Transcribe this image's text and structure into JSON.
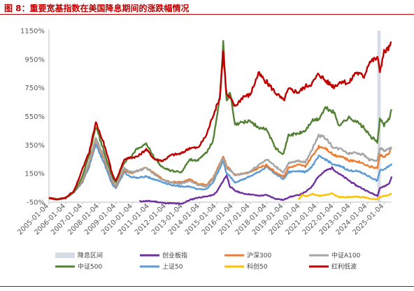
{
  "title": "图 8：重要宽基指数在美国降息期间的涨跌幅情况",
  "chart_data": {
    "type": "line",
    "title": "图 8：重要宽基指数在美国降息期间的涨跌幅情况",
    "ylim": [
      -50,
      1150
    ],
    "yticks": [
      "1150%",
      "950%",
      "750%",
      "550%",
      "350%",
      "150%",
      "-50%"
    ],
    "y_tick_values": [
      1150,
      950,
      750,
      550,
      350,
      150,
      -50
    ],
    "x_tick_labels": [
      "2005-01-04",
      "2006-01-04",
      "2007-01-04",
      "2008-01-04",
      "2009-01-04",
      "2010-01-04",
      "2011-01-04",
      "2012-01-04",
      "2013-01-04",
      "2014-01-04",
      "2015-01-04",
      "2016-01-04",
      "2017-01-04",
      "2018-01-04",
      "2019-01-04",
      "2020-01-04",
      "2021-01-04",
      "2022-01-04",
      "2023-01-04",
      "2024-01-04",
      "2025-01-04"
    ],
    "xlim": [
      2005.0,
      2025.45
    ],
    "grid": false,
    "legend_position": "bottom",
    "shaded_region": {
      "name": "降息区间",
      "x": [
        2024.6,
        2024.8
      ],
      "color": "#D6DCE5"
    },
    "series": [
      {
        "name": "创业板指",
        "color": "#7030A0",
        "x": [
          2010.4,
          2010.8,
          2011.3,
          2011.8,
          2012.3,
          2012.9,
          2013.4,
          2013.8,
          2014.4,
          2014.8,
          2015.0,
          2015.4,
          2015.6,
          2015.8,
          2016.1,
          2016.6,
          2017.0,
          2017.5,
          2018.0,
          2018.5,
          2019.0,
          2019.3,
          2019.9,
          2020.3,
          2020.7,
          2021.0,
          2021.5,
          2021.9,
          2022.3,
          2022.8,
          2023.3,
          2023.8,
          2024.1,
          2024.6,
          2024.75,
          2025.0,
          2025.3,
          2025.45
        ],
        "y": [
          -45,
          -42,
          -45,
          -55,
          -58,
          -62,
          -35,
          -20,
          -10,
          0,
          20,
          100,
          140,
          60,
          30,
          10,
          5,
          -5,
          0,
          -25,
          -35,
          -15,
          0,
          20,
          60,
          120,
          170,
          190,
          150,
          110,
          70,
          40,
          20,
          -5,
          50,
          60,
          80,
          130
        ]
      },
      {
        "name": "沪深300",
        "color": "#ED7D31",
        "x": [
          2005.0,
          2005.5,
          2006.0,
          2006.5,
          2007.0,
          2007.4,
          2007.8,
          2008.3,
          2008.8,
          2009.0,
          2009.5,
          2009.8,
          2010.3,
          2010.8,
          2011.3,
          2011.8,
          2012.3,
          2012.9,
          2013.4,
          2013.9,
          2014.4,
          2014.8,
          2015.2,
          2015.4,
          2015.6,
          2015.8,
          2016.1,
          2016.6,
          2017.0,
          2017.5,
          2018.0,
          2018.5,
          2019.0,
          2019.3,
          2019.9,
          2020.3,
          2020.7,
          2021.1,
          2021.5,
          2022.0,
          2022.5,
          2022.9,
          2023.3,
          2023.8,
          2024.1,
          2024.6,
          2024.75,
          2025.0,
          2025.3,
          2025.45
        ],
        "y": [
          -20,
          -30,
          -20,
          20,
          100,
          220,
          390,
          250,
          90,
          60,
          180,
          150,
          170,
          190,
          150,
          110,
          90,
          90,
          110,
          80,
          70,
          120,
          220,
          270,
          200,
          180,
          140,
          150,
          160,
          190,
          210,
          160,
          130,
          190,
          210,
          200,
          270,
          340,
          330,
          280,
          270,
          240,
          240,
          220,
          200,
          190,
          280,
          270,
          290,
          330
        ]
      },
      {
        "name": "中证A100",
        "color": "#A5A5A5",
        "x": [
          2005.0,
          2005.5,
          2006.0,
          2006.5,
          2007.0,
          2007.4,
          2007.8,
          2008.3,
          2008.8,
          2009.0,
          2009.5,
          2009.8,
          2010.3,
          2010.8,
          2011.3,
          2011.8,
          2012.3,
          2012.9,
          2013.4,
          2013.9,
          2014.4,
          2014.8,
          2015.2,
          2015.4,
          2015.6,
          2015.8,
          2016.1,
          2016.6,
          2017.0,
          2017.5,
          2018.0,
          2018.5,
          2019.0,
          2019.3,
          2019.9,
          2020.3,
          2020.7,
          2021.1,
          2021.5,
          2022.0,
          2022.5,
          2022.9,
          2023.3,
          2023.8,
          2024.1,
          2024.6,
          2024.75,
          2025.0,
          2025.3,
          2025.45
        ],
        "y": [
          -20,
          -30,
          -20,
          20,
          110,
          230,
          400,
          260,
          100,
          70,
          190,
          160,
          170,
          190,
          145,
          105,
          85,
          80,
          100,
          70,
          60,
          110,
          210,
          260,
          190,
          175,
          140,
          150,
          165,
          210,
          250,
          200,
          160,
          220,
          240,
          230,
          320,
          420,
          400,
          330,
          320,
          290,
          300,
          280,
          250,
          240,
          330,
          310,
          320,
          330
        ]
      },
      {
        "name": "中证500",
        "color": "#548235",
        "x": [
          2005.0,
          2005.5,
          2006.0,
          2006.5,
          2007.0,
          2007.4,
          2007.8,
          2008.3,
          2008.8,
          2009.0,
          2009.5,
          2009.8,
          2010.3,
          2010.8,
          2011.3,
          2011.8,
          2012.3,
          2012.9,
          2013.4,
          2013.9,
          2014.4,
          2014.8,
          2015.2,
          2015.4,
          2015.6,
          2015.8,
          2016.1,
          2016.6,
          2017.0,
          2017.5,
          2018.0,
          2018.5,
          2019.0,
          2019.3,
          2019.9,
          2020.3,
          2020.7,
          2021.1,
          2021.5,
          2022.0,
          2022.3,
          2022.9,
          2023.3,
          2023.8,
          2024.1,
          2024.6,
          2024.75,
          2025.0,
          2025.3,
          2025.45
        ],
        "y": [
          -20,
          -30,
          -20,
          20,
          130,
          280,
          480,
          300,
          120,
          90,
          230,
          260,
          330,
          360,
          260,
          190,
          170,
          160,
          250,
          240,
          300,
          380,
          690,
          1060,
          650,
          720,
          490,
          510,
          520,
          470,
          460,
          330,
          290,
          420,
          430,
          450,
          520,
          530,
          610,
          580,
          490,
          540,
          520,
          470,
          420,
          370,
          530,
          490,
          530,
          600
        ]
      },
      {
        "name": "上证50",
        "color": "#5B9BD5",
        "x": [
          2005.0,
          2005.5,
          2006.0,
          2006.5,
          2007.0,
          2007.4,
          2007.8,
          2008.3,
          2008.8,
          2009.0,
          2009.5,
          2009.8,
          2010.3,
          2010.8,
          2011.3,
          2011.8,
          2012.3,
          2012.9,
          2013.4,
          2013.9,
          2014.4,
          2014.8,
          2015.2,
          2015.4,
          2015.6,
          2015.8,
          2016.1,
          2016.6,
          2017.0,
          2017.5,
          2018.0,
          2018.5,
          2019.0,
          2019.3,
          2019.9,
          2020.3,
          2020.7,
          2021.1,
          2021.5,
          2022.0,
          2022.5,
          2022.9,
          2023.3,
          2023.8,
          2024.1,
          2024.6,
          2024.75,
          2025.0,
          2025.3,
          2025.45
        ],
        "y": [
          -20,
          -30,
          -20,
          20,
          90,
          200,
          360,
          220,
          70,
          50,
          160,
          130,
          120,
          130,
          110,
          90,
          70,
          60,
          60,
          40,
          40,
          90,
          190,
          240,
          150,
          130,
          90,
          110,
          130,
          160,
          200,
          150,
          110,
          160,
          170,
          160,
          200,
          270,
          250,
          210,
          200,
          170,
          170,
          150,
          130,
          100,
          170,
          180,
          200,
          220
        ]
      },
      {
        "name": "科创50",
        "color": "#FFC000",
        "x": [
          2019.9,
          2020.1,
          2020.4,
          2020.7,
          2021.0,
          2021.5,
          2021.9,
          2022.3,
          2022.8,
          2023.3,
          2023.8,
          2024.1,
          2024.6,
          2024.75,
          2025.0,
          2025.3,
          2025.45
        ],
        "y": [
          -30,
          0,
          -10,
          10,
          -5,
          0,
          10,
          -15,
          -15,
          -10,
          -15,
          -25,
          -30,
          -15,
          -5,
          0,
          10
        ]
      },
      {
        "name": "红利低波",
        "color": "#C00000",
        "x": [
          2005.0,
          2005.5,
          2006.0,
          2006.5,
          2007.0,
          2007.4,
          2007.8,
          2008.3,
          2008.8,
          2009.0,
          2009.5,
          2009.8,
          2010.3,
          2010.8,
          2011.3,
          2011.8,
          2012.3,
          2012.9,
          2013.4,
          2013.9,
          2014.4,
          2014.8,
          2015.2,
          2015.4,
          2015.6,
          2015.8,
          2016.1,
          2016.6,
          2017.0,
          2017.5,
          2018.0,
          2018.5,
          2019.0,
          2019.3,
          2019.9,
          2020.3,
          2020.7,
          2021.1,
          2021.5,
          2022.0,
          2022.5,
          2022.9,
          2023.3,
          2023.8,
          2024.1,
          2024.6,
          2024.75,
          2025.0,
          2025.3,
          2025.45
        ],
        "y": [
          -20,
          -30,
          -20,
          30,
          180,
          300,
          510,
          350,
          140,
          100,
          250,
          260,
          270,
          320,
          250,
          240,
          280,
          290,
          330,
          330,
          420,
          560,
          680,
          1000,
          700,
          680,
          620,
          690,
          700,
          850,
          790,
          720,
          660,
          740,
          720,
          760,
          780,
          850,
          800,
          760,
          800,
          780,
          860,
          830,
          930,
          960,
          870,
          1000,
          1030,
          1070
        ]
      }
    ]
  }
}
